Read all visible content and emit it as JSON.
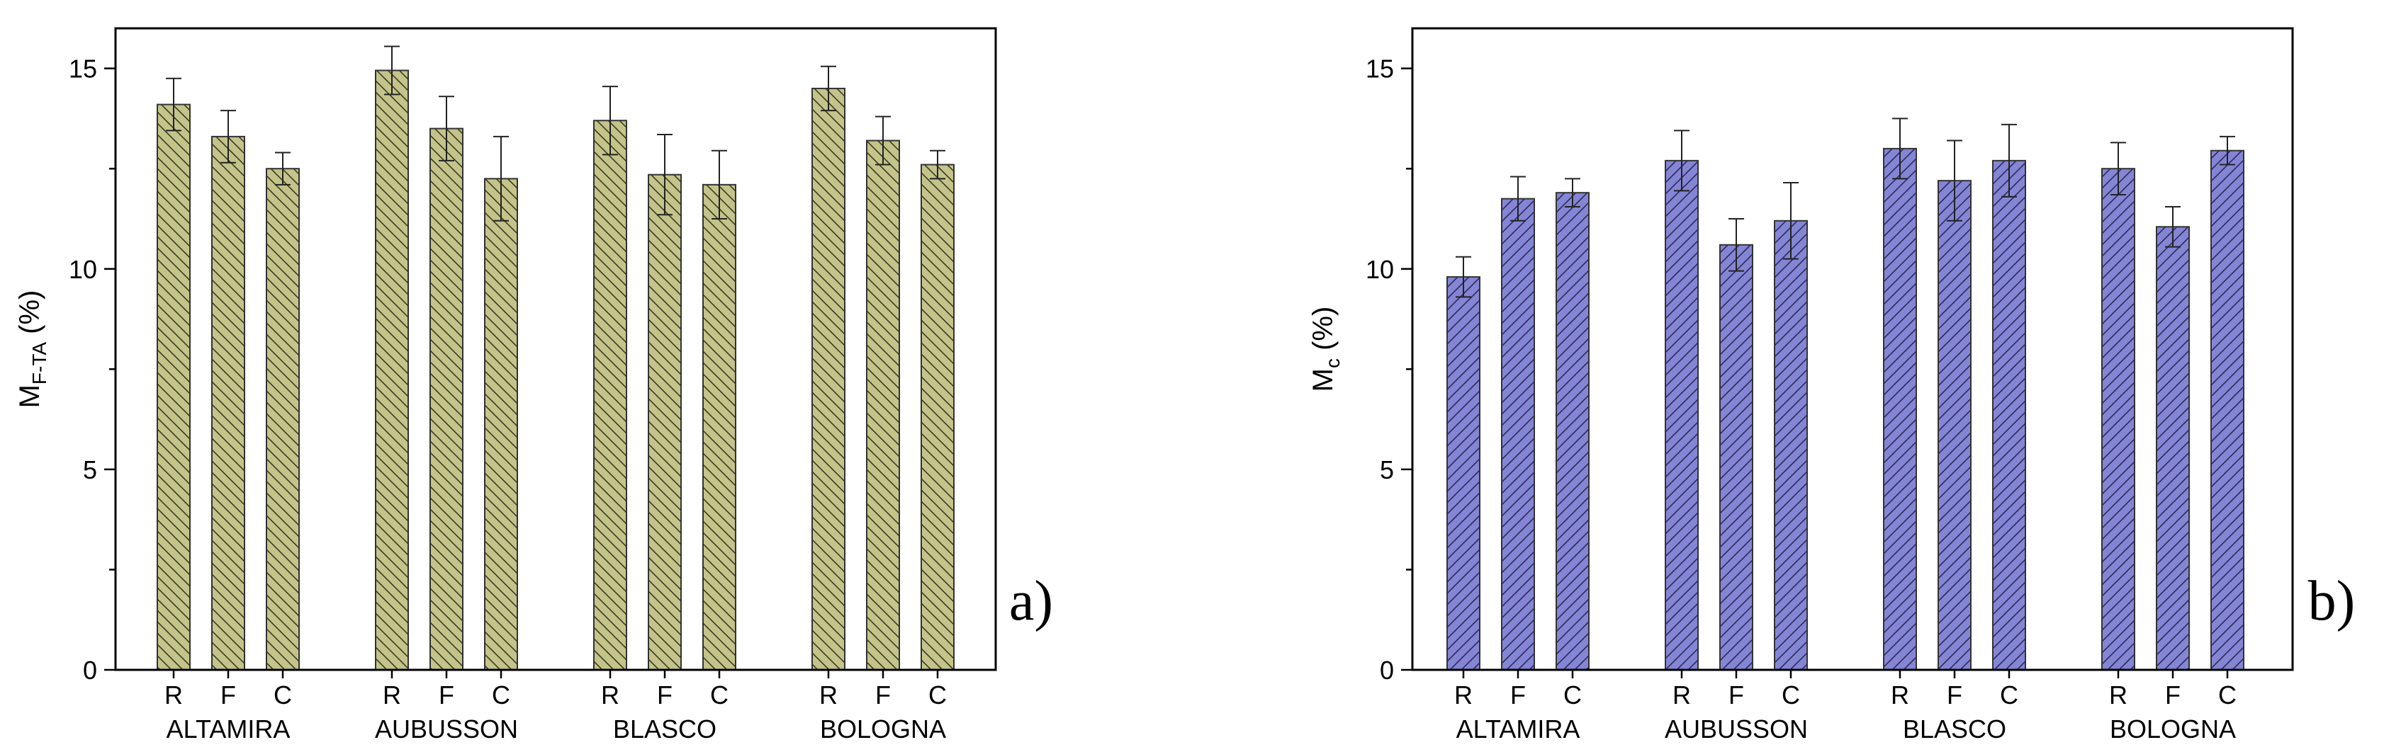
{
  "chart_data": [
    {
      "panel": "a)",
      "type": "bar",
      "ylabel_main": "M",
      "ylabel_sub": "F-TA",
      "ylabel_unit": "(%)",
      "ylim": [
        0,
        16
      ],
      "yticks": [
        0,
        5,
        10,
        15
      ],
      "groups": [
        "ALTAMIRA",
        "AUBUSSON",
        "BLASCO",
        "BOLOGNA"
      ],
      "categories": [
        "R",
        "F",
        "C"
      ],
      "values": [
        [
          14.1,
          13.3,
          12.5
        ],
        [
          14.95,
          13.5,
          12.25
        ],
        [
          13.7,
          12.35,
          12.1
        ],
        [
          14.5,
          13.2,
          12.6
        ]
      ],
      "errors": [
        [
          0.65,
          0.65,
          0.4
        ],
        [
          0.6,
          0.8,
          1.05
        ],
        [
          0.85,
          1.0,
          0.85
        ],
        [
          0.55,
          0.6,
          0.35
        ]
      ],
      "fill": "#c4c48a",
      "hatch": "backslash"
    },
    {
      "panel": "b)",
      "type": "bar",
      "ylabel_main": "M",
      "ylabel_sub": "c",
      "ylabel_unit": "(%)",
      "ylim": [
        0,
        16
      ],
      "yticks": [
        0,
        5,
        10,
        15
      ],
      "groups": [
        "ALTAMIRA",
        "AUBUSSON",
        "BLASCO",
        "BOLOGNA"
      ],
      "categories": [
        "R",
        "F",
        "C"
      ],
      "values": [
        [
          9.8,
          11.75,
          11.9
        ],
        [
          12.7,
          10.6,
          11.2
        ],
        [
          13.0,
          12.2,
          12.7
        ],
        [
          12.5,
          11.05,
          12.95
        ]
      ],
      "errors": [
        [
          0.5,
          0.55,
          0.35
        ],
        [
          0.75,
          0.65,
          0.95
        ],
        [
          0.75,
          1.0,
          0.9
        ],
        [
          0.65,
          0.5,
          0.35
        ]
      ],
      "fill": "#8585d6",
      "hatch": "slash"
    }
  ]
}
